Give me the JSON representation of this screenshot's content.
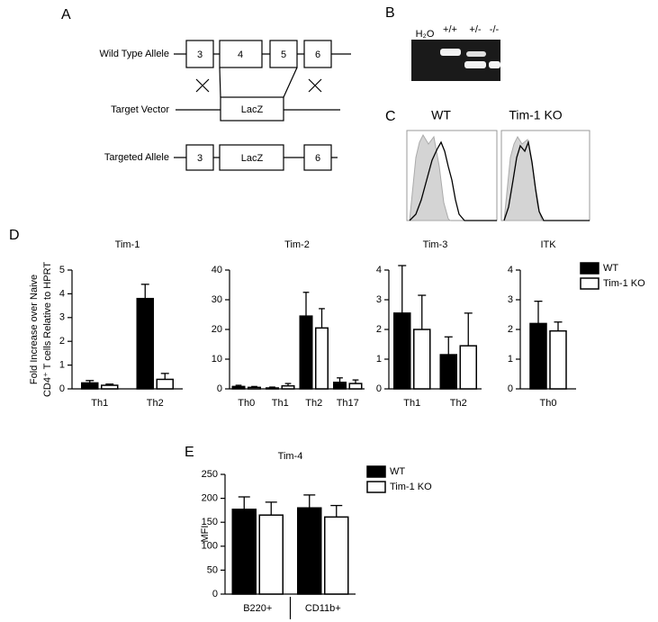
{
  "panel_labels": [
    "A",
    "B",
    "C",
    "D",
    "E"
  ],
  "diagram": {
    "rows": [
      "Wild Type Allele",
      "Target Vector",
      "Targeted Allele"
    ],
    "exons": [
      "3",
      "4",
      "5",
      "6"
    ],
    "insert": "LacZ"
  },
  "gel": {
    "lanes": [
      "H₂O",
      "+/+",
      "+/-",
      "-/-"
    ]
  },
  "flow": {
    "panels": [
      "WT",
      "Tim-1 KO"
    ]
  },
  "chart_data": [
    {
      "type": "bar",
      "title": "Tim-1",
      "ylabel": [
        "Fold Increase over Naive",
        "CD4⁺ T cells Relative to HPRT"
      ],
      "categories": [
        "Th1",
        "Th2"
      ],
      "ylim": [
        0,
        5
      ],
      "yticks": [
        0,
        1,
        2,
        3,
        4,
        5
      ],
      "series": [
        {
          "name": "WT",
          "color": "#000000",
          "values": [
            0.25,
            3.8
          ],
          "errors": [
            0.1,
            0.6
          ]
        },
        {
          "name": "Tim-1 KO",
          "color": "#ffffff",
          "values": [
            0.15,
            0.4
          ],
          "errors": [
            0.05,
            0.25
          ]
        }
      ]
    },
    {
      "type": "bar",
      "title": "Tim-2",
      "categories": [
        "Th0",
        "Th1",
        "Th2",
        "Th17"
      ],
      "ylim": [
        0,
        40
      ],
      "yticks": [
        0,
        10,
        20,
        30,
        40
      ],
      "series": [
        {
          "name": "WT",
          "color": "#000000",
          "values": [
            0.8,
            0.3,
            24.5,
            2.2
          ],
          "errors": [
            0.4,
            0.3,
            8,
            1.5
          ]
        },
        {
          "name": "Tim-1 KO",
          "color": "#ffffff",
          "values": [
            0.5,
            1,
            20.5,
            1.8
          ],
          "errors": [
            0.3,
            0.8,
            6.5,
            1.2
          ]
        }
      ]
    },
    {
      "type": "bar",
      "title": "Tim-3",
      "categories": [
        "Th1",
        "Th2"
      ],
      "ylim": [
        0,
        4
      ],
      "yticks": [
        0,
        1,
        2,
        3,
        4
      ],
      "series": [
        {
          "name": "WT",
          "color": "#000000",
          "values": [
            2.55,
            1.15
          ],
          "errors": [
            1.6,
            0.6
          ]
        },
        {
          "name": "Tim-1 KO",
          "color": "#ffffff",
          "values": [
            2.0,
            1.45
          ],
          "errors": [
            1.15,
            1.1
          ]
        }
      ]
    },
    {
      "type": "bar",
      "title": "ITK",
      "categories": [
        "Th0"
      ],
      "ylim": [
        0,
        4
      ],
      "yticks": [
        0,
        1,
        2,
        3,
        4
      ],
      "series": [
        {
          "name": "WT",
          "color": "#000000",
          "values": [
            2.2
          ],
          "errors": [
            0.75
          ]
        },
        {
          "name": "Tim-1 KO",
          "color": "#ffffff",
          "values": [
            1.95
          ],
          "errors": [
            0.3
          ]
        }
      ]
    },
    {
      "type": "bar",
      "title": "Tim-4",
      "ylabel": [
        "MFI"
      ],
      "categories": [
        "B220+",
        "CD11b+"
      ],
      "ylim": [
        0,
        250
      ],
      "yticks": [
        0,
        50,
        100,
        150,
        200,
        250
      ],
      "series": [
        {
          "name": "WT",
          "color": "#000000",
          "values": [
            177,
            180
          ],
          "errors": [
            26,
            27
          ]
        },
        {
          "name": "Tim-1 KO",
          "color": "#ffffff",
          "values": [
            165,
            161
          ],
          "errors": [
            27,
            24
          ]
        }
      ]
    }
  ]
}
